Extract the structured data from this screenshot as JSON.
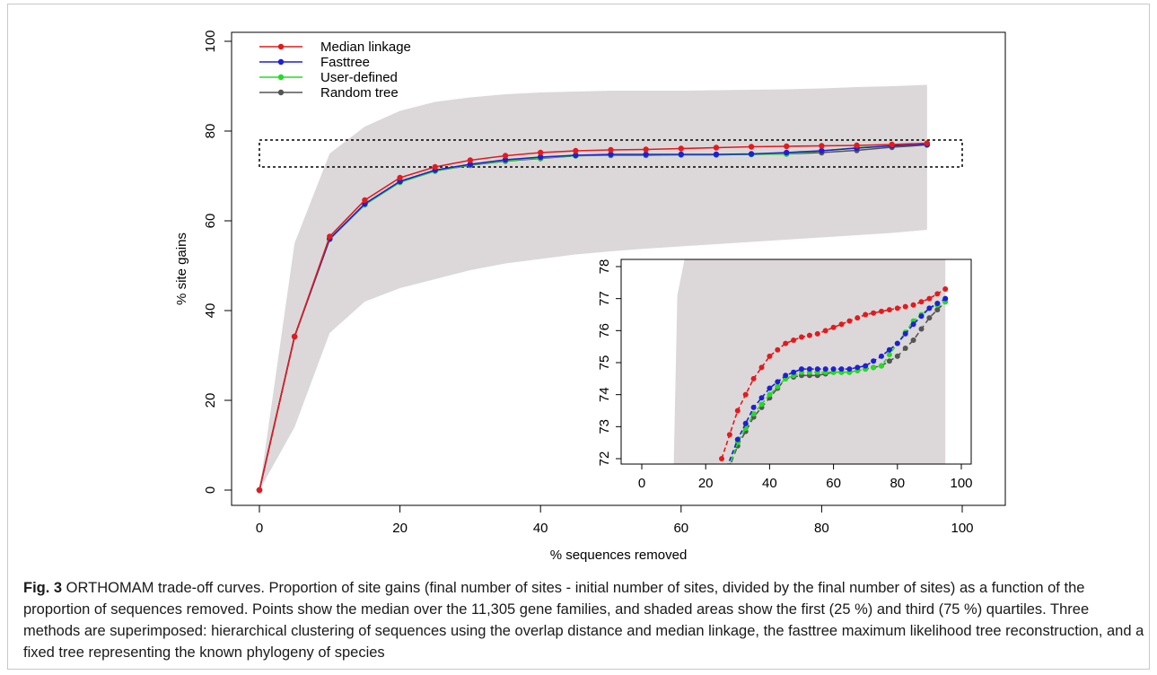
{
  "chart_data": [
    {
      "type": "line",
      "xlabel": "% sequences removed",
      "ylabel": "% site gains",
      "xlim": [
        0,
        100
      ],
      "ylim": [
        0,
        100
      ],
      "x_ticks": [
        "0",
        "20",
        "40",
        "60",
        "80",
        "100"
      ],
      "y_ticks": [
        "0",
        "20",
        "40",
        "60",
        "80",
        "100"
      ],
      "x": [
        0,
        5,
        10,
        15,
        20,
        25,
        30,
        35,
        40,
        45,
        50,
        55,
        60,
        65,
        70,
        75,
        80,
        85,
        90,
        95
      ],
      "legend_position": "top-left",
      "series": [
        {
          "name": "Median linkage",
          "color": "#e41a1c",
          "values": [
            0,
            34.2,
            56.5,
            64.6,
            69.6,
            72.0,
            73.5,
            74.5,
            75.2,
            75.6,
            75.8,
            75.9,
            76.1,
            76.3,
            76.5,
            76.6,
            76.7,
            76.8,
            77.0,
            77.3
          ]
        },
        {
          "name": "Fasttree",
          "color": "#1f1fd6",
          "values": [
            0,
            34.2,
            56.0,
            63.8,
            68.8,
            71.3,
            72.6,
            73.6,
            74.2,
            74.6,
            74.8,
            74.8,
            74.8,
            74.8,
            74.9,
            75.2,
            75.6,
            76.2,
            76.7,
            77.0
          ]
        },
        {
          "name": "User-defined",
          "color": "#22dd22",
          "values": [
            0,
            34.2,
            55.9,
            63.6,
            68.6,
            71.1,
            72.5,
            73.4,
            74.0,
            74.5,
            74.7,
            74.7,
            74.7,
            74.7,
            74.8,
            74.9,
            75.6,
            76.3,
            76.7,
            76.9
          ]
        },
        {
          "name": "Random tree",
          "color": "#555555",
          "values": [
            0,
            34.2,
            55.9,
            63.6,
            68.6,
            71.1,
            72.4,
            73.3,
            73.9,
            74.5,
            74.6,
            74.6,
            74.7,
            74.7,
            74.8,
            74.9,
            75.2,
            75.7,
            76.4,
            76.9
          ]
        }
      ],
      "band": {
        "q1": [
          0,
          14,
          35,
          42,
          45,
          47,
          49,
          50.5,
          51.5,
          52.5,
          53.2,
          53.8,
          54.3,
          54.8,
          55.3,
          55.8,
          56.3,
          56.8,
          57.3,
          58
        ],
        "q3": [
          0,
          55,
          75,
          81,
          84.5,
          86.5,
          87.5,
          88.2,
          88.6,
          88.8,
          89,
          89,
          89,
          89.1,
          89.2,
          89.3,
          89.5,
          89.8,
          90,
          90.3
        ],
        "color": "#dcd8da"
      },
      "zoom_box": {
        "x": [
          0,
          100
        ],
        "y": [
          72,
          78
        ]
      }
    },
    {
      "type": "line",
      "xlim": [
        0,
        100
      ],
      "ylim": [
        72,
        78
      ],
      "x_ticks": [
        "0",
        "20",
        "40",
        "60",
        "80",
        "100"
      ],
      "y_ticks": [
        "72",
        "73",
        "74",
        "75",
        "76",
        "77",
        "78"
      ],
      "x": [
        25,
        27.5,
        30,
        32.5,
        35,
        37.5,
        40,
        42.5,
        45,
        47.5,
        50,
        52.5,
        55,
        57.5,
        60,
        62.5,
        65,
        67.5,
        70,
        72.5,
        75,
        77.5,
        80,
        82.5,
        85,
        87.5,
        90,
        92.5,
        95
      ],
      "band_x": [
        10,
        95
      ]
    }
  ],
  "caption": {
    "label": "Fig. 3",
    "text": " ORTHOMAM trade-off curves. Proportion of site gains (final number of sites - initial number of sites, divided by the final number of sites) as a function of the proportion of sequences removed. Points show the median over the 11,305 gene families, and shaded areas show the first (25 %) and third (75 %) quartiles. Three methods are superimposed: hierarchical clustering of sequences using the overlap distance and median linkage, the fasttree maximum likelihood tree reconstruction, and a fixed tree representing the known phylogeny of species"
  }
}
